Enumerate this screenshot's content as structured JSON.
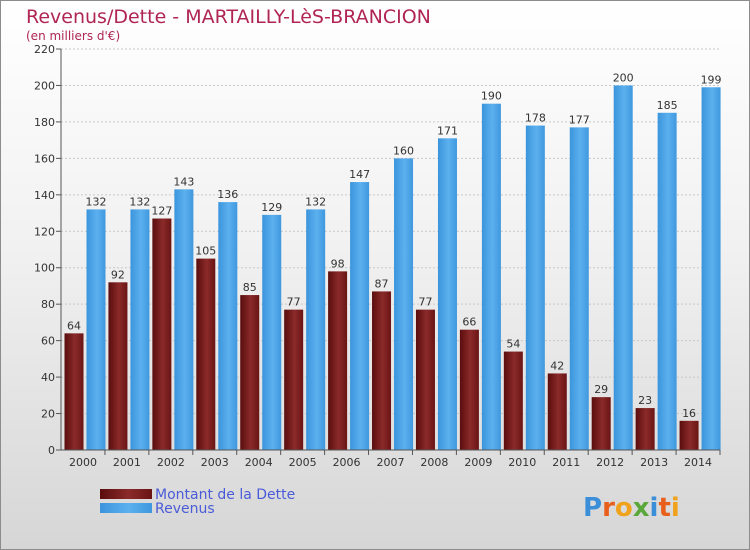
{
  "chart_data": {
    "type": "bar",
    "title": "Revenus/Dette - MARTAILLY-LèS-BRANCION",
    "subtitle": "(en milliers d'€)",
    "categories": [
      "2000",
      "2001",
      "2002",
      "2003",
      "2004",
      "2005",
      "2006",
      "2007",
      "2008",
      "2009",
      "2010",
      "2011",
      "2012",
      "2013",
      "2014"
    ],
    "series": [
      {
        "name": "Montant de la Dette",
        "color": "#7a1f1f",
        "values": [
          64,
          92,
          127,
          105,
          85,
          77,
          98,
          87,
          77,
          66,
          54,
          42,
          29,
          23,
          16
        ]
      },
      {
        "name": "Revenus",
        "color": "#4aa3e6",
        "values": [
          132,
          132,
          143,
          136,
          129,
          132,
          147,
          160,
          171,
          190,
          178,
          177,
          200,
          185,
          199
        ]
      }
    ],
    "ylim": [
      0,
      220
    ],
    "yticks": [
      0,
      20,
      40,
      60,
      80,
      100,
      120,
      140,
      160,
      180,
      200,
      220
    ],
    "grid": true,
    "legend": "bottom-left"
  },
  "logo": "Proxiti"
}
